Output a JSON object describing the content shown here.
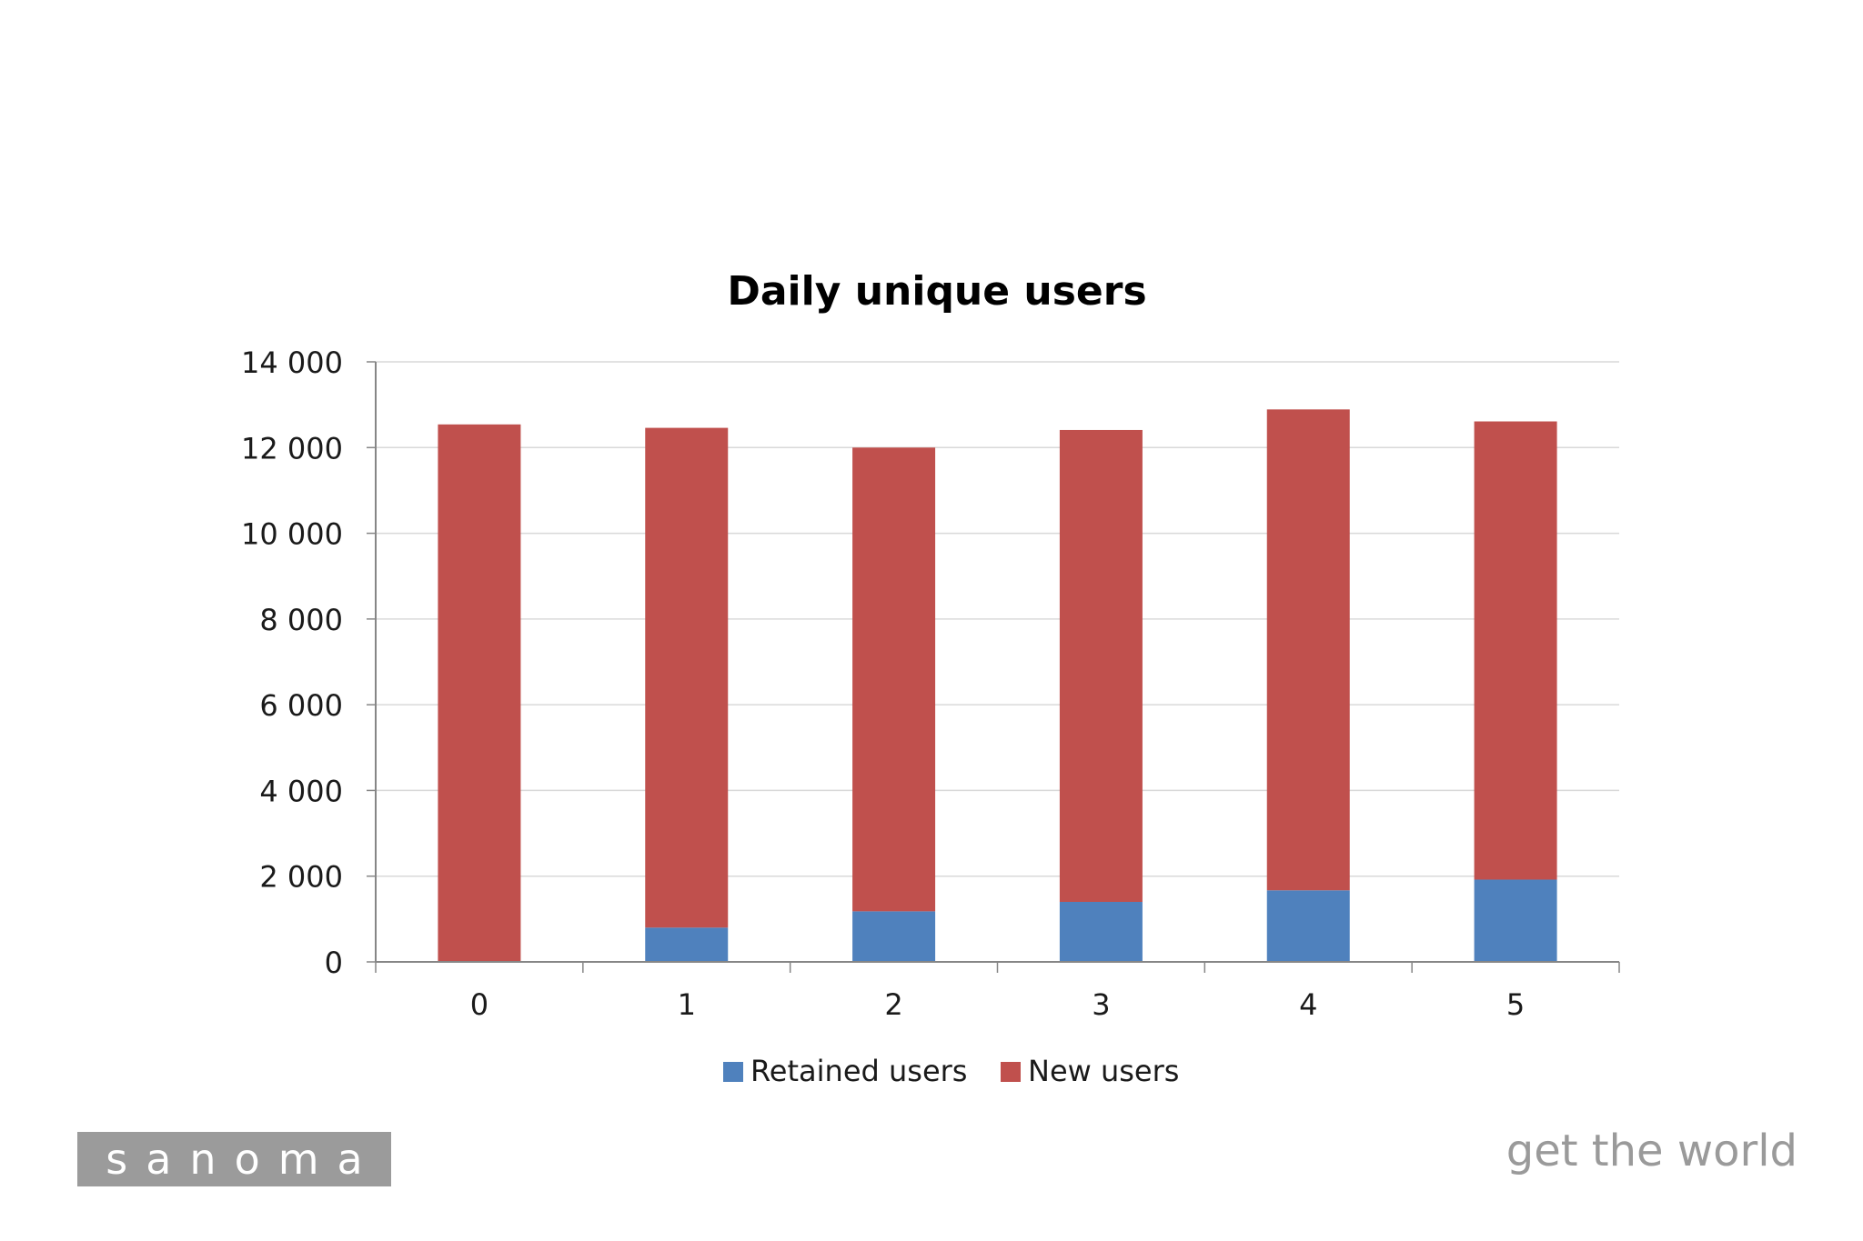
{
  "chart_data": {
    "type": "bar",
    "stacked": true,
    "title": "Daily unique users",
    "xlabel": "",
    "ylabel": "",
    "categories": [
      "0",
      "1",
      "2",
      "3",
      "4",
      "5"
    ],
    "series": [
      {
        "name": "Retained users",
        "color": "#4f81bd",
        "values": [
          0,
          800,
          1180,
          1400,
          1670,
          1920
        ]
      },
      {
        "name": "New users",
        "color": "#c0504d",
        "values": [
          12540,
          11660,
          10820,
          11010,
          11220,
          10690
        ]
      }
    ],
    "ylim": [
      0,
      14000
    ],
    "yticks": [
      0,
      2000,
      4000,
      6000,
      8000,
      10000,
      12000,
      14000
    ],
    "ytick_labels": [
      "0",
      "2 000",
      "4 000",
      "6 000",
      "8 000",
      "10 000",
      "12 000",
      "14 000"
    ],
    "grid": true,
    "legend_position": "bottom"
  },
  "branding": {
    "logo_text": "sanoma",
    "tagline": "get the world"
  }
}
